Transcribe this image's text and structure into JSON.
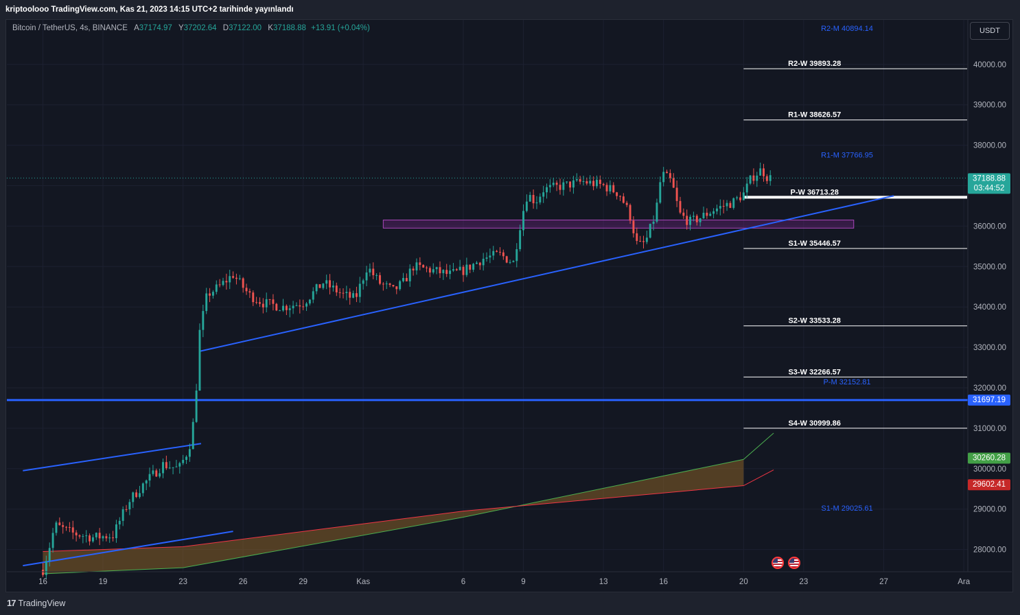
{
  "header": {
    "published": "kriptoolooo TradingView.com, Kas 21, 2023 14:15 UTC+2 tarihinde yayınlandı"
  },
  "legend": {
    "symbol": "Bitcoin / TetherUS, 4s, BINANCE",
    "open_label": "A",
    "open": "37174.97",
    "high_label": "Y",
    "high": "37202.64",
    "low_label": "D",
    "low": "37122.00",
    "close_label": "K",
    "close": "37188.88",
    "change": "+13.91 (+0.04%)"
  },
  "currency_button": "USDT",
  "footer": {
    "brand": "TradingView",
    "brand_mark": "17"
  },
  "colors": {
    "up": "#26a69a",
    "down": "#ef5350",
    "trend": "#2962ff",
    "level": "#2962ff",
    "cloud_green": "#4caf50",
    "cloud_red": "#f23645",
    "zone": "#9c27b0"
  },
  "chart_data": {
    "type": "candlestick",
    "x_ticks": [
      "16",
      "19",
      "23",
      "26",
      "29",
      "Kas",
      "6",
      "9",
      "13",
      "16",
      "20",
      "23",
      "27",
      "Ara"
    ],
    "x_tick_pos": [
      16,
      19,
      23,
      26,
      29,
      32,
      37,
      40,
      44,
      47,
      51,
      54,
      58,
      62
    ],
    "ylim": [
      27450,
      41100
    ],
    "y_ticks": [
      28000,
      29000,
      30000,
      31000,
      32000,
      33000,
      34000,
      35000,
      36000,
      37000,
      38000,
      39000,
      40000
    ],
    "y_tick_labels": [
      "28000.00",
      "29000.00",
      "30000.00",
      "31000.00",
      "32000.00",
      "33000.00",
      "34000.00",
      "35000.00",
      "36000.00",
      "37000.00",
      "38000.00",
      "39000.00",
      "40000.00"
    ],
    "anchors": [
      [
        16.0,
        27500
      ],
      [
        16.4,
        28200
      ],
      [
        16.6,
        28600
      ],
      [
        17.5,
        28400
      ],
      [
        18.5,
        28300
      ],
      [
        19.5,
        28350
      ],
      [
        20.3,
        29200
      ],
      [
        21.0,
        29600
      ],
      [
        22.0,
        30100
      ],
      [
        22.8,
        30000
      ],
      [
        23.3,
        30500
      ],
      [
        23.6,
        31400
      ],
      [
        23.8,
        33300
      ],
      [
        24.2,
        34300
      ],
      [
        24.8,
        34500
      ],
      [
        25.5,
        34800
      ],
      [
        26.3,
        34300
      ],
      [
        27.0,
        34100
      ],
      [
        28.0,
        34000
      ],
      [
        29.0,
        34100
      ],
      [
        30.0,
        34600
      ],
      [
        31.0,
        34300
      ],
      [
        31.6,
        34200
      ],
      [
        32.2,
        35000
      ],
      [
        32.8,
        34600
      ],
      [
        33.5,
        34400
      ],
      [
        34.0,
        34600
      ],
      [
        34.5,
        35000
      ],
      [
        35.5,
        34900
      ],
      [
        36.3,
        34800
      ],
      [
        37.0,
        34900
      ],
      [
        38.0,
        35200
      ],
      [
        38.8,
        35300
      ],
      [
        39.5,
        35100
      ],
      [
        39.9,
        36200
      ],
      [
        40.2,
        36800
      ],
      [
        40.6,
        36600
      ],
      [
        41.0,
        36900
      ],
      [
        42.0,
        37000
      ],
      [
        43.0,
        37100
      ],
      [
        44.0,
        37000
      ],
      [
        44.8,
        36800
      ],
      [
        45.3,
        36300
      ],
      [
        45.7,
        35500
      ],
      [
        46.1,
        35600
      ],
      [
        46.6,
        36300
      ],
      [
        46.9,
        37300
      ],
      [
        47.4,
        37100
      ],
      [
        47.8,
        36300
      ],
      [
        48.3,
        36100
      ],
      [
        48.8,
        36200
      ],
      [
        49.5,
        36400
      ],
      [
        50.5,
        36600
      ],
      [
        51.0,
        36800
      ],
      [
        51.4,
        37200
      ],
      [
        51.9,
        37400
      ],
      [
        52.2,
        37200
      ],
      [
        52.45,
        37180
      ]
    ],
    "last_price": "37188.88",
    "countdown": "03:44:52",
    "horizontal_level": {
      "value": 31697.19,
      "label": "31697.19"
    },
    "cloud_green": {
      "points": [
        [
          16,
          27400
        ],
        [
          23,
          27550
        ],
        [
          37,
          28800
        ],
        [
          51,
          30230
        ],
        [
          52.5,
          30880
        ]
      ],
      "label": "30260.28",
      "label_value": 30260.28
    },
    "cloud_red": {
      "points": [
        [
          16,
          27950
        ],
        [
          23,
          28070
        ],
        [
          37,
          28950
        ],
        [
          51,
          29580
        ],
        [
          52.5,
          29970
        ]
      ],
      "label": "29602.41",
      "label_value": 29602.41
    },
    "trendlines": [
      {
        "p1": [
          15.0,
          27600
        ],
        "p2": [
          25.5,
          28450
        ]
      },
      {
        "p1": [
          15.0,
          29950
        ],
        "p2": [
          23.9,
          30620
        ]
      },
      {
        "p1": [
          23.8,
          32900
        ],
        "p2": [
          58.5,
          36750
        ]
      }
    ],
    "zone": {
      "x1": 33.0,
      "x2": 56.5,
      "y1": 35950,
      "y2": 36150
    },
    "pivots_weekly": [
      {
        "label": "R2-W 39893.28",
        "value": 39893.28
      },
      {
        "label": "R1-W 38626.57",
        "value": 38626.57
      },
      {
        "label": "P-W 36713.28",
        "value": 36713.28,
        "bold": true
      },
      {
        "label": "S1-W 35446.57",
        "value": 35446.57
      },
      {
        "label": "S2-W 33533.28",
        "value": 33533.28
      },
      {
        "label": "S3-W 32266.57",
        "value": 32266.57
      },
      {
        "label": "S4-W 30999.86",
        "value": 30999.86
      }
    ],
    "pivots_monthly": [
      {
        "label": "R2-M 40894.14",
        "value": 40894.14
      },
      {
        "label": "R1-M 37766.95",
        "value": 37766.95
      },
      {
        "label": "P-M 32152.81",
        "value": 32152.81
      },
      {
        "label": "S1-M 29025.61",
        "value": 29025.61
      }
    ]
  }
}
